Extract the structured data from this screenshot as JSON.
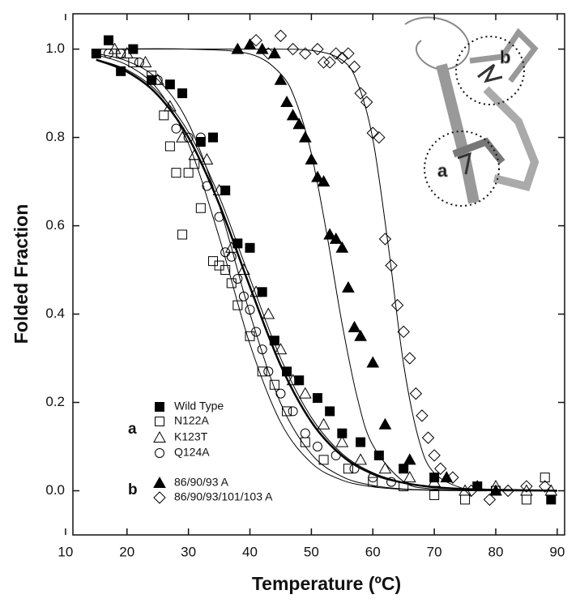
{
  "chart_data": {
    "type": "scatter",
    "x_label": "Temperature (ºC)",
    "y_label": "Folded Fraction",
    "xlim": [
      11.2,
      91.2
    ],
    "ylim": [
      -0.1,
      1.08
    ],
    "xticks": [
      10,
      20,
      30,
      40,
      50,
      60,
      70,
      80,
      90
    ],
    "yticks": [
      {
        "value": 0,
        "label": "0.0"
      },
      0.2,
      0.4,
      0.6,
      0.8,
      {
        "value": 1,
        "label": "1.0"
      }
    ],
    "legend_groups": [
      {
        "label": "a"
      },
      {
        "label": "b"
      }
    ],
    "series": [
      {
        "name": "Wild Type",
        "marker": "square",
        "filled": true,
        "color": "#000000",
        "fit_width": 2.5,
        "x": [
          15,
          17,
          19,
          21,
          24,
          27,
          29,
          32,
          34,
          36,
          38,
          40,
          42,
          44,
          46,
          48,
          51,
          53,
          55,
          58,
          61,
          65,
          70,
          77,
          89
        ],
        "values": [
          0.99,
          1.02,
          0.95,
          1.0,
          0.93,
          0.92,
          0.9,
          0.79,
          0.8,
          0.68,
          0.56,
          0.55,
          0.45,
          0.34,
          0.27,
          0.25,
          0.21,
          0.18,
          0.13,
          0.11,
          0.08,
          0.05,
          0.03,
          0.01,
          -0.02
        ],
        "fit": {
          "x": [
            15,
            20,
            25,
            30,
            35,
            40,
            45,
            50,
            55,
            60,
            65,
            70,
            75,
            80,
            85,
            90
          ],
          "values": [
            0.976,
            0.949,
            0.896,
            0.8,
            0.649,
            0.462,
            0.284,
            0.156,
            0.079,
            0.038,
            0.018,
            0.008,
            0.004,
            0.002,
            0.001,
            0
          ]
        }
      },
      {
        "name": "N122A",
        "marker": "square",
        "filled": false,
        "color": "#000000",
        "fit_width": 1,
        "x": [
          17,
          19,
          21,
          24,
          26,
          27,
          28,
          29,
          30,
          31,
          32,
          34,
          35,
          36,
          37,
          38,
          40,
          42,
          44,
          46,
          49,
          52,
          56,
          60,
          65,
          70,
          75,
          80,
          85,
          88
        ],
        "values": [
          1.02,
          0.99,
          0.97,
          0.94,
          0.85,
          0.78,
          0.72,
          0.58,
          0.72,
          0.74,
          0.64,
          0.52,
          0.51,
          0.5,
          0.47,
          0.42,
          0.35,
          0.27,
          0.24,
          0.18,
          0.11,
          0.07,
          0.05,
          0.02,
          0.01,
          -0.01,
          -0.02,
          0,
          -0.02,
          0.03
        ],
        "fit": {
          "x": [
            15,
            20,
            25,
            30,
            35,
            40,
            45,
            50,
            55,
            60,
            65,
            70,
            75,
            80,
            85,
            90
          ],
          "values": [
            0.987,
            0.964,
            0.909,
            0.786,
            0.574,
            0.332,
            0.155,
            0.063,
            0.024,
            0.009,
            0.003,
            0.001,
            0,
            0,
            0,
            0
          ]
        }
      },
      {
        "name": "K123T",
        "marker": "triangle",
        "filled": false,
        "color": "#000000",
        "fit_width": 1,
        "x": [
          18,
          20,
          23,
          25,
          27,
          29,
          31,
          33,
          35,
          37,
          39,
          41,
          43,
          45,
          47,
          49,
          52,
          55,
          58,
          62,
          66,
          70,
          75,
          80,
          85,
          89
        ],
        "values": [
          1.0,
          0.99,
          0.97,
          0.93,
          0.87,
          0.8,
          0.76,
          0.75,
          0.68,
          0.55,
          0.5,
          0.45,
          0.4,
          0.32,
          0.25,
          0.22,
          0.15,
          0.11,
          0.07,
          0.05,
          0.03,
          0.02,
          0,
          0.01,
          0,
          0
        ],
        "fit": {
          "x": [
            15,
            20,
            25,
            30,
            35,
            40,
            45,
            50,
            55,
            60,
            65,
            70,
            75,
            80,
            85,
            90
          ],
          "values": [
            0.977,
            0.953,
            0.903,
            0.812,
            0.666,
            0.481,
            0.3,
            0.166,
            0.084,
            0.041,
            0.019,
            0.009,
            0.004,
            0.002,
            0.001,
            0
          ]
        }
      },
      {
        "name": "Q124A",
        "marker": "circle",
        "filled": false,
        "color": "#000000",
        "fit_width": 1,
        "x": [
          17,
          19,
          22,
          25,
          28,
          30,
          32,
          33,
          35,
          36,
          37,
          38,
          39,
          40,
          41,
          42,
          43,
          45,
          47,
          49,
          51,
          54,
          57,
          60,
          63
        ],
        "values": [
          0.99,
          0.99,
          0.97,
          0.93,
          0.82,
          0.8,
          0.8,
          0.69,
          0.62,
          0.54,
          0.53,
          0.48,
          0.44,
          0.41,
          0.36,
          0.32,
          0.27,
          0.22,
          0.18,
          0.13,
          0.1,
          0.08,
          0.05,
          0.03,
          0.02
        ],
        "fit": {
          "x": [
            15,
            20,
            25,
            30,
            35,
            40,
            45,
            50,
            55,
            60,
            65,
            70,
            75,
            80,
            85,
            90
          ],
          "values": [
            0.99,
            0.973,
            0.931,
            0.832,
            0.646,
            0.401,
            0.198,
            0.083,
            0.032,
            0.012,
            0.004,
            0.002,
            0.001,
            0,
            0,
            0
          ]
        }
      },
      {
        "name": "86/90/93 A",
        "marker": "triangle",
        "filled": true,
        "color": "#000000",
        "fit_width": 1,
        "x": [
          38,
          40,
          42,
          44,
          45,
          46,
          47,
          48,
          49,
          50,
          51,
          52,
          53,
          54,
          55,
          56,
          57,
          58,
          60,
          62,
          66,
          72,
          77,
          80
        ],
        "values": [
          1.0,
          1.01,
          1.0,
          0.99,
          0.93,
          0.88,
          0.85,
          0.83,
          0.8,
          0.75,
          0.71,
          0.7,
          0.58,
          0.57,
          0.55,
          0.46,
          0.37,
          0.35,
          0.29,
          0.15,
          0.07,
          0.03,
          0.01,
          0
        ],
        "fit": {
          "x": [
            15,
            30,
            40,
            45,
            47.5,
            50,
            52.5,
            55,
            57.5,
            60,
            65,
            70,
            80,
            90
          ],
          "values": [
            1,
            1,
            0.989,
            0.944,
            0.881,
            0.763,
            0.582,
            0.378,
            0.209,
            0.103,
            0.021,
            0.004,
            0,
            0
          ]
        }
      },
      {
        "name": "86/90/93/101/103 A",
        "marker": "diamond",
        "filled": false,
        "color": "#000000",
        "fit_width": 1,
        "x": [
          41,
          43,
          45,
          47,
          49,
          51,
          52,
          53,
          54,
          55,
          56,
          57,
          58,
          59,
          60,
          61,
          62,
          63,
          64,
          65,
          66,
          67,
          68,
          69,
          70,
          71,
          73,
          76,
          79,
          82,
          85,
          88
        ],
        "values": [
          1.02,
          0.99,
          1.03,
          1.0,
          0.99,
          1.0,
          0.97,
          0.97,
          0.99,
          0.98,
          0.99,
          0.96,
          0.9,
          0.88,
          0.81,
          0.8,
          0.57,
          0.51,
          0.42,
          0.36,
          0.3,
          0.22,
          0.17,
          0.12,
          0.08,
          0.05,
          0.03,
          0,
          -0.02,
          0,
          0.01,
          0.01
        ],
        "fit": {
          "x": [
            15,
            40,
            50,
            55,
            57.5,
            60,
            62.5,
            65,
            67.5,
            70,
            75,
            80,
            90
          ],
          "values": [
            1,
            1,
            0.997,
            0.975,
            0.924,
            0.796,
            0.556,
            0.287,
            0.115,
            0.04,
            0.004,
            0,
            0
          ]
        }
      }
    ]
  }
}
